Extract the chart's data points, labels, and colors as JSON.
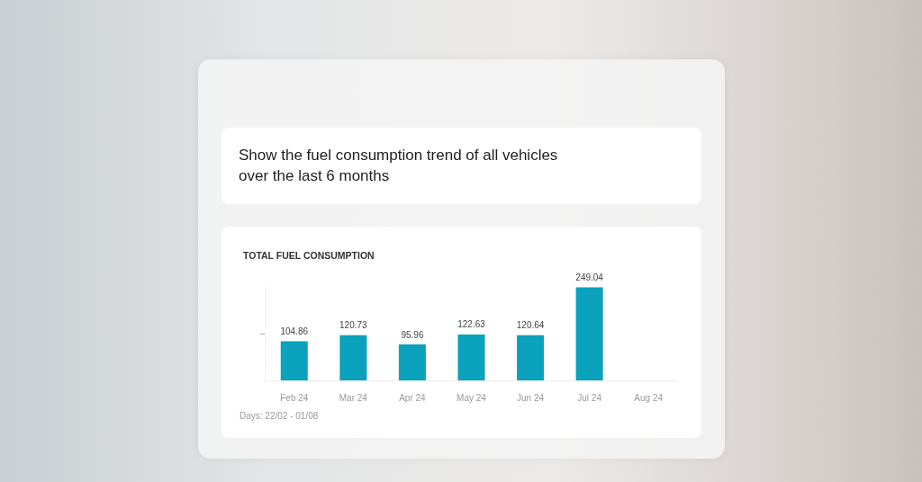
{
  "chart_data": {
    "type": "bar",
    "title": "TOTAL FUEL CONSUMPTION",
    "categories": [
      "Feb 24",
      "Mar 24",
      "Apr 24",
      "May 24",
      "Jun 24",
      "Jul 24",
      "Aug 24"
    ],
    "values": [
      104.86,
      120.73,
      95.96,
      122.63,
      120.64,
      249.04,
      null
    ],
    "color": "#0aa2bc",
    "ylim": [
      0,
      250
    ],
    "yticks": [
      {
        "value": 125,
        "label": null
      }
    ],
    "tick_labels": "x",
    "data_labels": true,
    "annotations": [
      "Show the fuel consumption trend of all vehicles over the last 6 months",
      "Days: 22/02 - 01/08"
    ]
  }
}
